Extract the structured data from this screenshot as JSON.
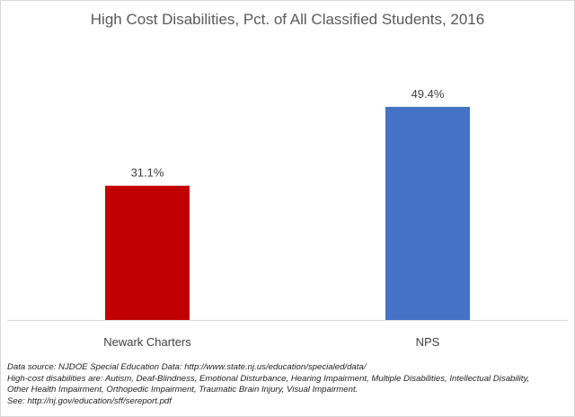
{
  "chart_data": {
    "type": "bar",
    "title": "High Cost Disabilities, Pct. of All Classified Students, 2016",
    "categories": [
      "Newark Charters",
      "NPS"
    ],
    "values": [
      31.1,
      49.4
    ],
    "data_labels": [
      "31.1%",
      "49.4%"
    ],
    "colors": [
      "#c00000",
      "#4472c4"
    ],
    "ylim": [
      0,
      60
    ],
    "xlabel": "",
    "ylabel": "",
    "grid": false,
    "legend": "none"
  },
  "footnotes": {
    "source": "Data source: NJDOE Special Education Data: http://www.state.nj.us/education/specialed/data/",
    "definition_line1": "High-cost disabilities are: Autism, Deaf-Blindness, Emotional Disturbance, Hearing Impairment, Multiple Disabilities, Intellectual Disability,",
    "definition_line2": "Other Health Impairment, Orthopedic Impairment, Traumatic Brain Injury, Visual Impairment.",
    "see": "See: http://nj.gov/education/sff/sereport.pdf"
  }
}
